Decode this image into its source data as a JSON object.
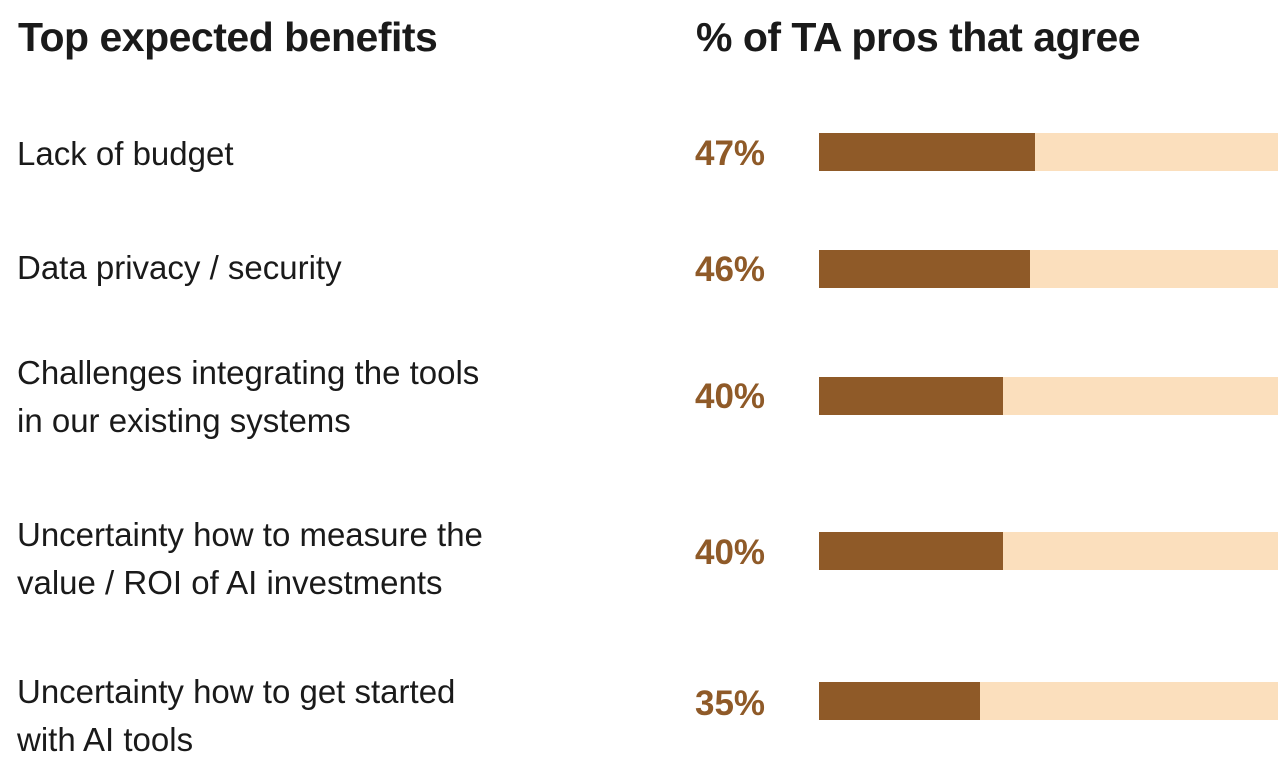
{
  "headers": {
    "left": "Top expected benefits",
    "right": "% of TA pros that agree"
  },
  "colors": {
    "bar_fill": "#8f5a28",
    "bar_track": "#fbdfbd",
    "value_text": "#8f5a28"
  },
  "chart_data": {
    "type": "bar",
    "orientation": "horizontal",
    "title": "",
    "xlabel": "% of TA pros that agree",
    "ylabel": "Top expected benefits",
    "xlim": [
      0,
      100
    ],
    "grid": false,
    "legend": "none",
    "categories": [
      "Lack of budget",
      "Data privacy / security",
      "Challenges integrating the tools\nin our existing systems",
      "Uncertainty how to measure the\nvalue / ROI of AI investments",
      "Uncertainty how to get started\nwith AI tools"
    ],
    "values": [
      47,
      46,
      40,
      40,
      35
    ],
    "value_labels": [
      "47%",
      "46%",
      "40%",
      "40%",
      "35%"
    ]
  }
}
